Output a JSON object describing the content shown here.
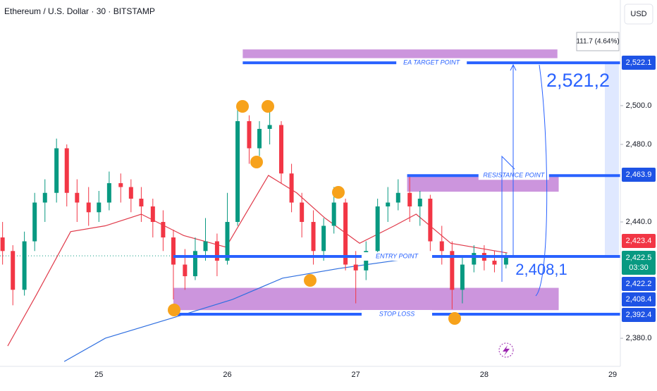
{
  "chart_data": {
    "type": "candlestick",
    "title": "Ethereum / U.S. Dollar · 30 · BITSTAMP",
    "currency": "USD",
    "xlim": [
      24.23,
      29.06
    ],
    "xticks": [
      25,
      26,
      27,
      28,
      29
    ],
    "ylim": [
      2365.5,
      2554.5
    ],
    "yticks": [
      {
        "value": 2380,
        "label": "2,380.0"
      },
      {
        "value": 2440,
        "label": "2,440.0"
      },
      {
        "value": 2480,
        "label": "2,480.0"
      },
      {
        "value": 2500,
        "label": "2,500.0"
      }
    ],
    "up_color": "#089981",
    "down_color": "#f23645",
    "candles": {
      "x": [
        24.25,
        24.33,
        24.42,
        24.5,
        24.58,
        24.67,
        24.75,
        24.83,
        24.92,
        25,
        25.08,
        25.17,
        25.25,
        25.33,
        25.42,
        25.5,
        25.58,
        25.67,
        25.75,
        25.83,
        25.92,
        26,
        26.08,
        26.17,
        26.25,
        26.33,
        26.42,
        26.5,
        26.58,
        26.67,
        26.75,
        26.83,
        26.92,
        27,
        27.08,
        27.17,
        27.25,
        27.33,
        27.42,
        27.5,
        27.58,
        27.67,
        27.75,
        27.83,
        27.92,
        28,
        28.08,
        28.17
      ],
      "open": [
        2432,
        2425,
        2405,
        2430,
        2450,
        2455,
        2478,
        2455,
        2450,
        2445,
        2450,
        2460,
        2458,
        2452,
        2448,
        2440,
        2432,
        2418,
        2412,
        2425,
        2430,
        2420,
        2440,
        2492,
        2478,
        2488,
        2490,
        2465,
        2450,
        2440,
        2425,
        2438,
        2450,
        2418,
        2415,
        2425,
        2448,
        2450,
        2455,
        2448,
        2452,
        2430,
        2425,
        2405,
        2418,
        2424,
        2420,
        2418
      ],
      "high": [
        2440,
        2428,
        2435,
        2455,
        2462,
        2483,
        2480,
        2462,
        2458,
        2456,
        2466,
        2465,
        2462,
        2458,
        2452,
        2446,
        2436,
        2426,
        2432,
        2442,
        2434,
        2455,
        2500,
        2495,
        2492,
        2498,
        2492,
        2470,
        2455,
        2446,
        2442,
        2458,
        2452,
        2425,
        2430,
        2452,
        2458,
        2462,
        2464,
        2456,
        2454,
        2438,
        2430,
        2422,
        2428,
        2428,
        2425,
        2424
      ],
      "low": [
        2418,
        2397,
        2402,
        2425,
        2440,
        2450,
        2448,
        2440,
        2438,
        2440,
        2446,
        2450,
        2445,
        2440,
        2432,
        2425,
        2400,
        2405,
        2410,
        2420,
        2412,
        2418,
        2438,
        2470,
        2474,
        2480,
        2460,
        2445,
        2432,
        2418,
        2420,
        2434,
        2415,
        2398,
        2410,
        2422,
        2440,
        2446,
        2440,
        2438,
        2425,
        2418,
        2395,
        2398,
        2414,
        2415,
        2414,
        2416
      ],
      "close": [
        2425,
        2405,
        2430,
        2450,
        2455,
        2478,
        2455,
        2450,
        2445,
        2450,
        2460,
        2458,
        2452,
        2448,
        2440,
        2432,
        2418,
        2412,
        2425,
        2430,
        2420,
        2440,
        2492,
        2478,
        2488,
        2490,
        2465,
        2450,
        2440,
        2425,
        2438,
        2450,
        2418,
        2415,
        2425,
        2448,
        2450,
        2455,
        2448,
        2452,
        2430,
        2425,
        2405,
        2418,
        2424,
        2420,
        2418,
        2422.5
      ]
    },
    "series": [
      {
        "color": "#e03a4a",
        "x": [
          24.29,
          24.51,
          24.78,
          25.05,
          25.33,
          25.66,
          25.99,
          26.15,
          26.32,
          26.54,
          26.76,
          27.03,
          27.3,
          27.47,
          27.74,
          28.18
        ],
        "values": [
          2376,
          2402,
          2435,
          2438,
          2444,
          2433,
          2427,
          2445,
          2464,
          2455,
          2442,
          2429,
          2438,
          2444,
          2429,
          2424
        ]
      },
      {
        "color": "#2f6fe0",
        "x": [
          24.73,
          25.05,
          25.6,
          26.04,
          26.43,
          26.87,
          27.3,
          27.63,
          28.18
        ],
        "values": [
          2368,
          2380,
          2391,
          2400,
          2411,
          2416,
          2420,
          2422.5,
          2422
        ]
      }
    ],
    "zones": [
      {
        "from": 26.12,
        "to": 28.57,
        "top": 2529,
        "bottom": 2524.5
      },
      {
        "from": 27.4,
        "to": 28.58,
        "top": 2463.6,
        "bottom": 2455.6
      },
      {
        "from": 25.58,
        "to": 28.58,
        "top": 2406,
        "bottom": 2394.5
      }
    ],
    "levels": [
      {
        "label": "EA TARGET POINT",
        "value": 2522.1,
        "from": 26.12
      },
      {
        "label": "RESISTANCE POINT",
        "value": 2463.9,
        "from": 27.4
      },
      {
        "label": "ENTRY POINT",
        "value": 2422.2,
        "from": 25.58
      },
      {
        "label": "STOP LOSS",
        "value": 2392.4,
        "from": 25.58
      }
    ],
    "price_badges": [
      {
        "value": 2522.1,
        "label": "2,522.1",
        "color": "#1e53e5"
      },
      {
        "value": 2463.9,
        "label": "2,463.9",
        "color": "#1e53e5"
      },
      {
        "value": 2423.4,
        "label": "2,423.4",
        "color": "#f23645"
      },
      {
        "value": 2422.5,
        "label": "2,422.5",
        "color": "#089981"
      },
      {
        "value": 2422.2,
        "label": "2,422.2",
        "color": "#1e53e5"
      },
      {
        "value": 2408.4,
        "label": "2,408.4",
        "color": "#1e53e5"
      },
      {
        "value": 2392.4,
        "label": "2,392.4",
        "color": "#1e53e5"
      }
    ],
    "countdown": "03:30",
    "annotations": [
      "2,521,2",
      "2,408,1",
      "111.7 (4.64%)"
    ]
  }
}
